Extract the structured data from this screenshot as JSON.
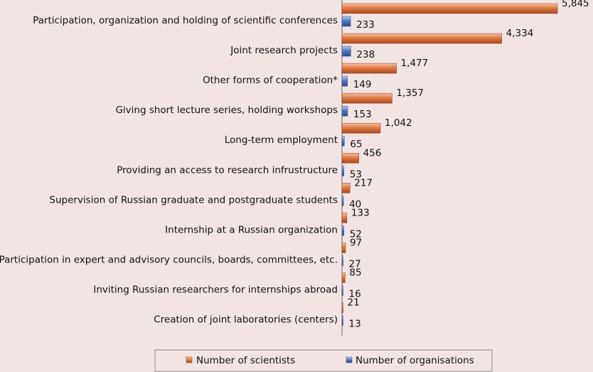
{
  "chart_data": {
    "type": "bar",
    "orientation": "horizontal",
    "categories": [
      "Participation, organization and holding of scientific conferences",
      "Joint research projects",
      "Other forms of cooperation*",
      "Giving short lecture series, holding workshops",
      "Long-term employment",
      "Providing an access to research infrustructure",
      "Supervision of Russian graduate and postgraduate students",
      "Internship at a Russian organization",
      "Participation in expert and advisory councils, boards, committees, etc.",
      "Inviting Russian researchers for internships abroad",
      "Creation of joint laboratories (centers)"
    ],
    "series": [
      {
        "name": "Number of scientists",
        "color": "#e07a45",
        "values": [
          5845,
          4334,
          1477,
          1357,
          1042,
          456,
          217,
          133,
          97,
          85,
          21
        ],
        "labels": [
          "5,845",
          "4,334",
          "1,477",
          "1,357",
          "1,042",
          "456",
          "217",
          "133",
          "97",
          "85",
          "21"
        ]
      },
      {
        "name": "Number of organisations",
        "color": "#4f7ac4",
        "values": [
          233,
          238,
          149,
          153,
          65,
          53,
          40,
          52,
          27,
          16,
          13
        ],
        "labels": [
          "233",
          "238",
          "149",
          "153",
          "65",
          "53",
          "40",
          "52",
          "27",
          "16",
          "13"
        ]
      }
    ],
    "xlim": [
      0,
      5845
    ],
    "grid": false,
    "legend_position": "bottom"
  }
}
